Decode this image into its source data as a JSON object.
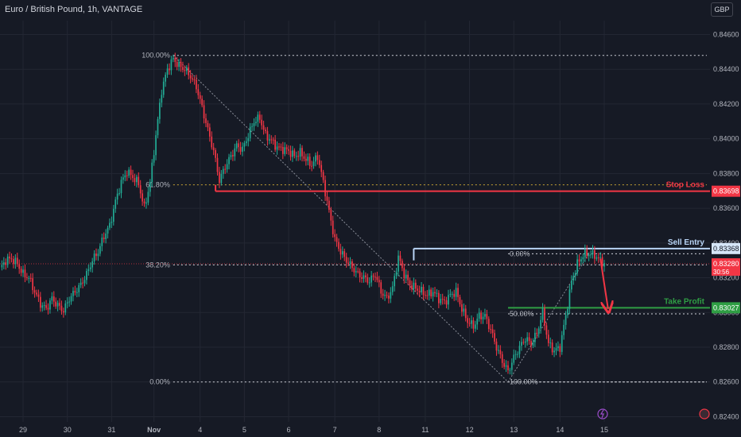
{
  "header": {
    "title": "Euro / British Pound, 1h, VANTAGE",
    "currency_button": "GBP"
  },
  "colors": {
    "up": "#22ab94",
    "down": "#f23645",
    "stop": "#f23645",
    "entry": "#b8d4f5",
    "target": "#2f9e44",
    "fib": "#d1d4dc",
    "fib_golden": "#c7a334",
    "background": "#161a25",
    "grid": "#232733"
  },
  "chart_data": {
    "type": "candlestick",
    "symbol": "Euro / British Pound",
    "timeframe": "1h",
    "broker": "VANTAGE",
    "currency": "GBP",
    "ylim": [
      0.8237,
      0.8468
    ],
    "y_ticks": [
      "0.84600",
      "0.84400",
      "0.84200",
      "0.84000",
      "0.83800",
      "0.83600",
      "0.83400",
      "0.83200",
      "0.83000",
      "0.82800",
      "0.82600",
      "0.82400"
    ],
    "x_ticks": [
      "29",
      "30",
      "31",
      "Nov",
      "4",
      "5",
      "6",
      "7",
      "8",
      "11",
      "12",
      "13",
      "14",
      "15"
    ],
    "price_path": [
      [
        0,
        0.8325
      ],
      [
        3,
        0.833
      ],
      [
        6,
        0.8331
      ],
      [
        9,
        0.8328
      ],
      [
        12,
        0.8322
      ],
      [
        15,
        0.832
      ],
      [
        18,
        0.8312
      ],
      [
        21,
        0.8305
      ],
      [
        24,
        0.8302
      ],
      [
        27,
        0.8308
      ],
      [
        30,
        0.8304
      ],
      [
        33,
        0.8301
      ],
      [
        36,
        0.8308
      ],
      [
        39,
        0.8312
      ],
      [
        42,
        0.8316
      ],
      [
        45,
        0.8322
      ],
      [
        48,
        0.833
      ],
      [
        51,
        0.8335
      ],
      [
        54,
        0.8344
      ],
      [
        57,
        0.835
      ],
      [
        60,
        0.8364
      ],
      [
        63,
        0.8375
      ],
      [
        66,
        0.8381
      ],
      [
        69,
        0.8378
      ],
      [
        72,
        0.8374
      ],
      [
        75,
        0.836
      ],
      [
        78,
        0.8375
      ],
      [
        81,
        0.8402
      ],
      [
        84,
        0.8428
      ],
      [
        87,
        0.844
      ],
      [
        90,
        0.8446
      ],
      [
        93,
        0.8442
      ],
      [
        96,
        0.844
      ],
      [
        99,
        0.8436
      ],
      [
        102,
        0.843
      ],
      [
        105,
        0.8418
      ],
      [
        108,
        0.8405
      ],
      [
        111,
        0.8393
      ],
      [
        114,
        0.8376
      ],
      [
        117,
        0.8384
      ],
      [
        120,
        0.839
      ],
      [
        123,
        0.8396
      ],
      [
        126,
        0.8394
      ],
      [
        129,
        0.8402
      ],
      [
        132,
        0.841
      ],
      [
        135,
        0.8412
      ],
      [
        138,
        0.8402
      ],
      [
        141,
        0.8399
      ],
      [
        144,
        0.8395
      ],
      [
        147,
        0.8394
      ],
      [
        150,
        0.8393
      ],
      [
        153,
        0.839
      ],
      [
        156,
        0.8392
      ],
      [
        159,
        0.8388
      ],
      [
        162,
        0.8385
      ],
      [
        165,
        0.839
      ],
      [
        168,
        0.8375
      ],
      [
        171,
        0.8358
      ],
      [
        174,
        0.8342
      ],
      [
        177,
        0.8335
      ],
      [
        180,
        0.833
      ],
      [
        183,
        0.8326
      ],
      [
        186,
        0.8322
      ],
      [
        189,
        0.832
      ],
      [
        192,
        0.8318
      ],
      [
        195,
        0.8322
      ],
      [
        198,
        0.8312
      ],
      [
        201,
        0.8308
      ],
      [
        204,
        0.8314
      ],
      [
        207,
        0.8332
      ],
      [
        210,
        0.8322
      ],
      [
        213,
        0.8316
      ],
      [
        216,
        0.8314
      ],
      [
        219,
        0.8312
      ],
      [
        222,
        0.831
      ],
      [
        225,
        0.8312
      ],
      [
        228,
        0.8308
      ],
      [
        231,
        0.8306
      ],
      [
        234,
        0.831
      ],
      [
        237,
        0.8312
      ],
      [
        240,
        0.8302
      ],
      [
        243,
        0.8295
      ],
      [
        246,
        0.8292
      ],
      [
        249,
        0.8298
      ],
      [
        252,
        0.8298
      ],
      [
        255,
        0.829
      ],
      [
        258,
        0.828
      ],
      [
        261,
        0.8272
      ],
      [
        264,
        0.8266
      ],
      [
        267,
        0.8274
      ],
      [
        270,
        0.828
      ],
      [
        273,
        0.8285
      ],
      [
        276,
        0.8282
      ],
      [
        279,
        0.8288
      ],
      [
        282,
        0.83
      ],
      [
        285,
        0.8282
      ],
      [
        288,
        0.8278
      ],
      [
        291,
        0.828
      ],
      [
        294,
        0.8298
      ],
      [
        297,
        0.8318
      ],
      [
        300,
        0.8328
      ],
      [
        303,
        0.8333
      ],
      [
        306,
        0.8334
      ],
      [
        309,
        0.8333
      ],
      [
        312,
        0.833
      ],
      [
        314,
        0.8328
      ]
    ],
    "fibonacci_retracements": [
      {
        "label": "100.00%",
        "price": 0.8448
      },
      {
        "label": "61.80%",
        "price": 0.83735
      },
      {
        "label": "38.20%",
        "price": 0.83274
      },
      {
        "label": "0.00%",
        "price": 0.826
      },
      {
        "label": "0.00%",
        "price": 0.83338
      },
      {
        "label": "50.00%",
        "price": 0.82992
      },
      {
        "label": "100.00%",
        "price": 0.826
      }
    ],
    "levels": [
      {
        "label": "Stop Loss",
        "price": 0.83698,
        "price_label": "0.83698"
      },
      {
        "label": "Sell Entry",
        "price": 0.83368,
        "price_label": "0.83368"
      },
      {
        "label": "Take Profit",
        "price": 0.83027,
        "price_label": "0.83027"
      }
    ],
    "current_price": {
      "price": 0.8328,
      "price_label": "0.83280",
      "countdown": "30:56"
    },
    "annotation": "projected drop from Sell Entry to Take Profit"
  }
}
